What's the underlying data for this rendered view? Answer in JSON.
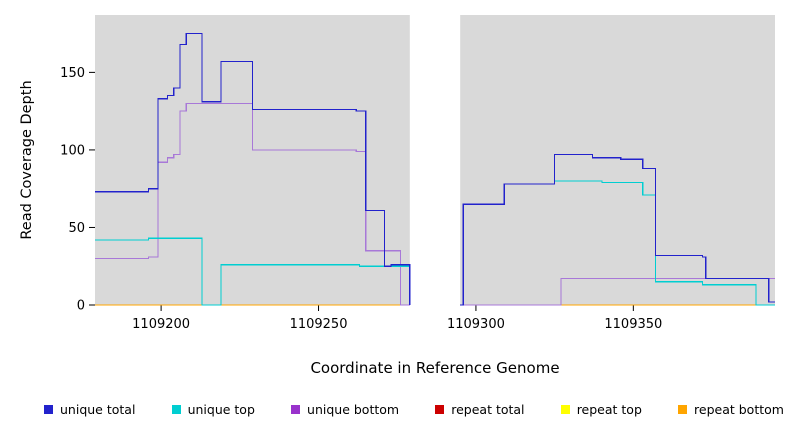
{
  "chart_data": {
    "type": "line",
    "subtype": "step",
    "title": "",
    "xlabel": "Coordinate in Reference Genome",
    "ylabel": "Read Coverage Depth",
    "xlim": [
      1109179,
      1109395
    ],
    "ylim": [
      0,
      187
    ],
    "x_ticks": [
      1109200,
      1109250,
      1109300,
      1109350
    ],
    "y_ticks": [
      0,
      50,
      100,
      150
    ],
    "plot_background": "#d9d9d9",
    "masked_region": {
      "x0": 1109279,
      "x1": 1109295,
      "color": "#ffffff"
    },
    "series": [
      {
        "id": "repeat-total",
        "name": "repeat total",
        "color": "#CC0000",
        "segments": [
          [
            [
              1109179,
              0
            ],
            [
              1109279,
              0
            ]
          ],
          [
            [
              1109295,
              0
            ],
            [
              1109395,
              0
            ]
          ]
        ]
      },
      {
        "id": "repeat-top",
        "name": "repeat top",
        "color": "#FFFF00",
        "segments": [
          [
            [
              1109179,
              0
            ],
            [
              1109279,
              0
            ]
          ],
          [
            [
              1109295,
              0
            ],
            [
              1109395,
              0
            ]
          ]
        ]
      },
      {
        "id": "repeat-bottom",
        "name": "repeat bottom",
        "color": "#FFA500",
        "segments": [
          [
            [
              1109179,
              0
            ],
            [
              1109279,
              0
            ]
          ],
          [
            [
              1109295,
              0
            ],
            [
              1109395,
              0
            ]
          ]
        ]
      },
      {
        "id": "unique-bottom",
        "name": "unique bottom",
        "color": "#A878D8",
        "segments": [
          [
            [
              1109179,
              30
            ],
            [
              1109196,
              31
            ],
            [
              1109199,
              92
            ],
            [
              1109202,
              95
            ],
            [
              1109204,
              97
            ],
            [
              1109206,
              125
            ],
            [
              1109208,
              130
            ],
            [
              1109228,
              130
            ],
            [
              1109229,
              100
            ],
            [
              1109261,
              100
            ],
            [
              1109262,
              99
            ],
            [
              1109264,
              99
            ],
            [
              1109265,
              35
            ],
            [
              1109275,
              35
            ],
            [
              1109276,
              0
            ],
            [
              1109279,
              0
            ]
          ],
          [
            [
              1109295,
              0
            ],
            [
              1109326,
              0
            ],
            [
              1109327,
              17
            ],
            [
              1109395,
              17
            ]
          ]
        ]
      },
      {
        "id": "unique-top",
        "name": "unique top",
        "color": "#00CED1",
        "segments": [
          [
            [
              1109179,
              42
            ],
            [
              1109196,
              43
            ],
            [
              1109212,
              43
            ],
            [
              1109213,
              0
            ],
            [
              1109218,
              0
            ],
            [
              1109219,
              26
            ],
            [
              1109262,
              26
            ],
            [
              1109263,
              25
            ],
            [
              1109277,
              25
            ],
            [
              1109279,
              0
            ]
          ],
          [
            [
              1109295,
              0
            ],
            [
              1109296,
              65
            ],
            [
              1109308,
              65
            ],
            [
              1109309,
              78
            ],
            [
              1109324,
              78
            ],
            [
              1109325,
              80
            ],
            [
              1109339,
              80
            ],
            [
              1109340,
              79
            ],
            [
              1109352,
              79
            ],
            [
              1109353,
              71
            ],
            [
              1109356,
              71
            ],
            [
              1109357,
              15
            ],
            [
              1109371,
              15
            ],
            [
              1109372,
              13
            ],
            [
              1109388,
              13
            ],
            [
              1109389,
              0
            ],
            [
              1109395,
              0
            ]
          ]
        ]
      },
      {
        "id": "unique-total",
        "name": "unique total",
        "color": "#2222CC",
        "segments": [
          [
            [
              1109179,
              73
            ],
            [
              1109196,
              75
            ],
            [
              1109199,
              133
            ],
            [
              1109202,
              135
            ],
            [
              1109204,
              140
            ],
            [
              1109206,
              168
            ],
            [
              1109208,
              175
            ],
            [
              1109212,
              175
            ],
            [
              1109213,
              131
            ],
            [
              1109218,
              131
            ],
            [
              1109219,
              157
            ],
            [
              1109228,
              157
            ],
            [
              1109229,
              126
            ],
            [
              1109261,
              126
            ],
            [
              1109262,
              125
            ],
            [
              1109264,
              125
            ],
            [
              1109265,
              61
            ],
            [
              1109270,
              61
            ],
            [
              1109271,
              25
            ],
            [
              1109273,
              26
            ],
            [
              1109279,
              0
            ]
          ],
          [
            [
              1109295,
              0
            ],
            [
              1109296,
              65
            ],
            [
              1109308,
              65
            ],
            [
              1109309,
              78
            ],
            [
              1109324,
              78
            ],
            [
              1109325,
              97
            ],
            [
              1109336,
              97
            ],
            [
              1109337,
              95
            ],
            [
              1109345,
              95
            ],
            [
              1109346,
              94
            ],
            [
              1109352,
              94
            ],
            [
              1109353,
              88
            ],
            [
              1109356,
              88
            ],
            [
              1109357,
              32
            ],
            [
              1109371,
              32
            ],
            [
              1109372,
              31
            ],
            [
              1109373,
              17
            ],
            [
              1109392,
              17
            ],
            [
              1109393,
              2
            ],
            [
              1109395,
              2
            ]
          ]
        ]
      }
    ],
    "legend": [
      {
        "label": "unique total",
        "color": "#2222CC"
      },
      {
        "label": "unique top",
        "color": "#00CED1"
      },
      {
        "label": "unique bottom",
        "color": "#9932CC"
      },
      {
        "label": "repeat total",
        "color": "#CC0000"
      },
      {
        "label": "repeat top",
        "color": "#FFFF00"
      },
      {
        "label": "repeat bottom",
        "color": "#FFA500"
      }
    ]
  }
}
